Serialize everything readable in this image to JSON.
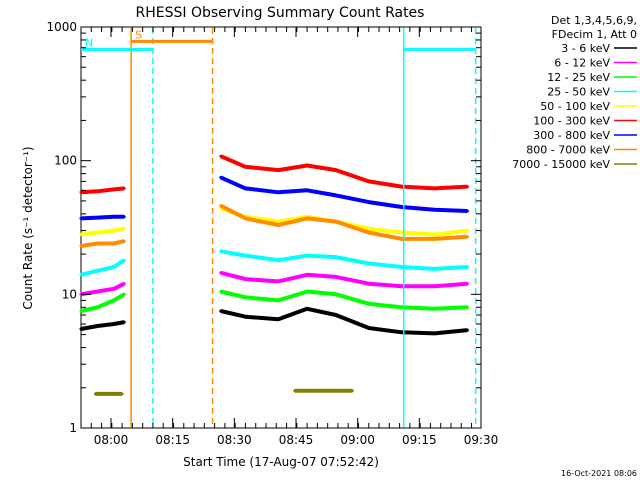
{
  "chart_data": {
    "type": "line",
    "title": "RHESSI Observing Summary Count Rates",
    "xlabel": "Start Time (17-Aug-07 07:52:42)",
    "ylabel": "Count Rate (s⁻¹ detector⁻¹)",
    "y_scale": "log",
    "ylim": [
      1,
      1000
    ],
    "y_ticks": [
      {
        "value": 1,
        "label": "1"
      },
      {
        "value": 10,
        "label": "10"
      },
      {
        "value": 100,
        "label": "100"
      },
      {
        "value": 1000,
        "label": "1000"
      }
    ],
    "x_unit": "minutes after 07:52:42",
    "xlim": [
      0,
      97.3
    ],
    "x_ticks": [
      {
        "value": 7.3,
        "label": "08:00"
      },
      {
        "value": 22.3,
        "label": "08:15"
      },
      {
        "value": 37.3,
        "label": "08:30"
      },
      {
        "value": 52.3,
        "label": "08:45"
      },
      {
        "value": 67.3,
        "label": "09:00"
      },
      {
        "value": 82.3,
        "label": "09:15"
      },
      {
        "value": 97.3,
        "label": "09:30"
      }
    ],
    "legend_header": [
      "Det 1,3,4,5,6,9,",
      "FDecim 1, Att 0"
    ],
    "legend_position": "right",
    "series": [
      {
        "name": "3 - 6 keV",
        "color": "#000000",
        "segments": [
          {
            "x": [
              0,
              4,
              8,
              10.5
            ],
            "y": [
              5.5,
              5.8,
              6.0,
              6.2
            ]
          },
          {
            "x": [
              34,
              40,
              48,
              55,
              62,
              70,
              78,
              86,
              94
            ],
            "y": [
              7.5,
              6.8,
              6.5,
              7.8,
              7.0,
              5.6,
              5.2,
              5.1,
              5.4
            ]
          }
        ]
      },
      {
        "name": "6 - 12 keV",
        "color": "#ff00ff",
        "segments": [
          {
            "x": [
              0,
              4,
              8,
              10.5
            ],
            "y": [
              10.0,
              10.5,
              11.0,
              12.0
            ]
          },
          {
            "x": [
              34,
              40,
              48,
              55,
              62,
              70,
              78,
              86,
              94
            ],
            "y": [
              14.5,
              13.0,
              12.5,
              14.0,
              13.5,
              12.0,
              11.5,
              11.5,
              12.0
            ]
          }
        ]
      },
      {
        "name": "12 - 25 keV",
        "color": "#00ff00",
        "segments": [
          {
            "x": [
              0,
              4,
              8,
              10.5
            ],
            "y": [
              7.5,
              8.0,
              9.0,
              10.0
            ]
          },
          {
            "x": [
              34,
              40,
              48,
              55,
              62,
              70,
              78,
              86,
              94
            ],
            "y": [
              10.5,
              9.5,
              9.0,
              10.5,
              10.0,
              8.5,
              8.0,
              7.8,
              8.0
            ]
          }
        ]
      },
      {
        "name": "25 - 50 keV",
        "color": "#00ffff",
        "segments": [
          {
            "x": [
              0,
              4,
              8,
              10.5
            ],
            "y": [
              14.0,
              15.0,
              16.0,
              18.0
            ]
          },
          {
            "x": [
              34,
              40,
              48,
              55,
              62,
              70,
              78,
              86,
              94
            ],
            "y": [
              21.0,
              19.5,
              18.0,
              19.5,
              19.0,
              17.0,
              16.0,
              15.5,
              16.0
            ]
          }
        ]
      },
      {
        "name": "50 - 100 keV",
        "color": "#ffff00",
        "segments": [
          {
            "x": [
              0,
              4,
              8,
              10.5
            ],
            "y": [
              28.0,
              29.0,
              30.0,
              31.0
            ]
          },
          {
            "x": [
              34,
              40,
              48,
              55,
              62,
              70,
              78,
              86,
              94
            ],
            "y": [
              44.0,
              38.0,
              35.0,
              38.0,
              35.0,
              31.0,
              29.0,
              28.0,
              30.0
            ]
          }
        ]
      },
      {
        "name": "100 - 300 keV",
        "color": "#ff0000",
        "segments": [
          {
            "x": [
              0,
              4,
              8,
              10.5
            ],
            "y": [
              58.0,
              59.0,
              61.0,
              62.0
            ]
          },
          {
            "x": [
              34,
              40,
              48,
              55,
              62,
              70,
              78,
              86,
              94
            ],
            "y": [
              108.0,
              90.0,
              85.0,
              92.0,
              85.0,
              70.0,
              64.0,
              62.0,
              64.0
            ]
          }
        ]
      },
      {
        "name": "300 - 800 keV",
        "color": "#0000ff",
        "segments": [
          {
            "x": [
              0,
              4,
              8,
              10.5
            ],
            "y": [
              37.0,
              37.5,
              38.0,
              38.0
            ]
          },
          {
            "x": [
              34,
              40,
              48,
              55,
              62,
              70,
              78,
              86,
              94
            ],
            "y": [
              75.0,
              62.0,
              58.0,
              60.0,
              55.0,
              49.0,
              45.0,
              43.0,
              42.0
            ]
          }
        ]
      },
      {
        "name": "800 - 7000 keV",
        "color": "#ff8c00",
        "segments": [
          {
            "x": [
              0,
              4,
              8,
              10.5
            ],
            "y": [
              23.0,
              24.0,
              24.0,
              25.0
            ]
          },
          {
            "x": [
              34,
              40,
              48,
              55,
              62,
              70,
              78,
              86,
              94
            ],
            "y": [
              46.0,
              37.0,
              33.0,
              37.0,
              35.0,
              29.0,
              26.0,
              26.0,
              27.0
            ]
          }
        ]
      },
      {
        "name": "7000 - 15000 keV",
        "color": "#808000",
        "segments": [
          {
            "x": [
              3.5,
              4.5,
              5.5,
              6.5,
              7.5,
              9.0,
              10.0
            ],
            "y": [
              1.8,
              1.8,
              1.8,
              1.8,
              1.8,
              1.8,
              1.8
            ]
          },
          {
            "x": [
              52,
              54,
              56,
              58,
              60,
              62,
              64,
              66
            ],
            "y": [
              1.9,
              1.9,
              1.9,
              1.9,
              1.9,
              1.9,
              1.9,
              1.9
            ]
          }
        ]
      }
    ],
    "annotations": [
      {
        "type": "attenuator_state",
        "label": "S",
        "color": "#ff8c00",
        "x_start": 12.2,
        "x_end": 32.0,
        "y": 780
      },
      {
        "type": "night_bar",
        "label": "N",
        "color": "#00ffff",
        "x_start": 0,
        "x_end": 17.5,
        "y": 680
      },
      {
        "type": "night_bar",
        "label": "",
        "color": "#00ffff",
        "x_start": 78.5,
        "x_end": 96.0,
        "y": 680
      }
    ],
    "vlines": [
      {
        "x": 12.2,
        "color": "#ff8c00",
        "style": "solid"
      },
      {
        "x": 17.5,
        "color": "#00ffff",
        "style": "dashed"
      },
      {
        "x": 32.0,
        "color": "#ff8c00",
        "style": "dashed"
      },
      {
        "x": 78.5,
        "color": "#00ffff",
        "style": "solid"
      },
      {
        "x": 96.0,
        "color": "#00ffff",
        "style": "dashed"
      }
    ],
    "grid": false
  },
  "footer": {
    "timestamp": "16-Oct-2021 08:06"
  }
}
